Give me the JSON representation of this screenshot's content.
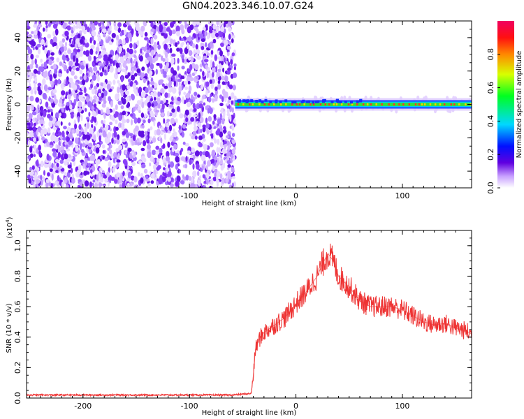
{
  "title": "GN04.2023.346.10.07.G24",
  "colors": {
    "snr_line": "#ee3333",
    "axis": "#000000"
  },
  "chart_data": [
    {
      "type": "heatmap",
      "xlabel": "Height of straight line (km)",
      "ylabel": "Frequency (Hz)",
      "xlim": [
        -253,
        165
      ],
      "ylim": [
        -50,
        50
      ],
      "xticks": [
        -200,
        -100,
        0,
        100
      ],
      "yticks": [
        -40,
        -20,
        0,
        20,
        40
      ],
      "description_of_signal": {
        "noise_region_x": [
          -253,
          -57
        ],
        "signal_region_x": [
          -57,
          165
        ],
        "signal_center_frequency": 0
      },
      "colorbar": {
        "label": "Normalized spectral amplitude",
        "ticks": [
          "0.0",
          "0.2",
          "0.4",
          "0.6",
          "0.8"
        ],
        "range": [
          0,
          1
        ]
      }
    },
    {
      "type": "line",
      "xlabel": "Height of straight line (km)",
      "ylabel": "SNR (10 * v/v)",
      "yscale_label": "(x10",
      "yscale_exp": "4",
      "xlim": [
        -253,
        165
      ],
      "ylim": [
        0,
        1.1
      ],
      "xticks": [
        -200,
        -100,
        0,
        100
      ],
      "yticks": [
        "0.0",
        "0.2",
        "0.4",
        "0.6",
        "0.8",
        "1.0"
      ],
      "series": [
        {
          "x": [
            -253,
            -200,
            -150,
            -100,
            -60,
            -42,
            -40,
            -38,
            -35,
            -30,
            -20,
            -10,
            0,
            10,
            20,
            25,
            30,
            35,
            40,
            50,
            60,
            70,
            80,
            90,
            100,
            110,
            120,
            130,
            140,
            150,
            160,
            165
          ],
          "y": [
            0.02,
            0.02,
            0.02,
            0.02,
            0.02,
            0.03,
            0.15,
            0.32,
            0.38,
            0.43,
            0.48,
            0.53,
            0.62,
            0.7,
            0.8,
            0.88,
            0.95,
            0.9,
            0.8,
            0.73,
            0.64,
            0.6,
            0.6,
            0.6,
            0.58,
            0.54,
            0.5,
            0.48,
            0.49,
            0.46,
            0.44,
            0.42
          ]
        }
      ]
    }
  ]
}
